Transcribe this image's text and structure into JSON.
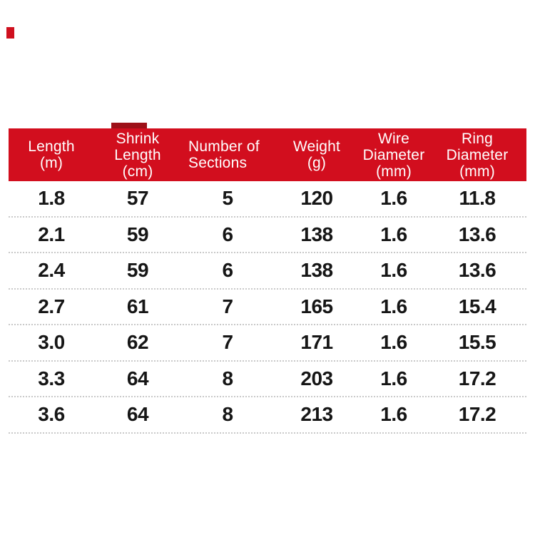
{
  "page": {
    "background_color": "#ffffff"
  },
  "decor": {
    "corner_mark_color": "#cf101e",
    "header_tab_color": "#9d1018"
  },
  "table": {
    "header_bg_color": "#d20e1e",
    "header_text_color": "#ffffff",
    "row_text_color": "#161616",
    "divider_color": "#c9c9c9",
    "columns": [
      {
        "id": "length",
        "label_lines": [
          "Length",
          "(m)"
        ],
        "align": "center"
      },
      {
        "id": "shrink-length",
        "label_lines": [
          "Shrink",
          "Length",
          "(cm)"
        ],
        "align": "center"
      },
      {
        "id": "number-of-sections",
        "label_lines": [
          "Number of",
          "Sections"
        ],
        "align": "left"
      },
      {
        "id": "weight",
        "label_lines": [
          "Weight",
          "(g)"
        ],
        "align": "center"
      },
      {
        "id": "wire-diameter",
        "label_lines": [
          "Wire",
          "Diameter",
          "(mm)"
        ],
        "align": "center"
      },
      {
        "id": "ring-diameter",
        "label_lines": [
          "Ring",
          "Diameter",
          "(mm)"
        ],
        "align": "center"
      }
    ],
    "rows": [
      [
        "1.8",
        "57",
        "5",
        "120",
        "1.6",
        "11.8"
      ],
      [
        "2.1",
        "59",
        "6",
        "138",
        "1.6",
        "13.6"
      ],
      [
        "2.4",
        "59",
        "6",
        "138",
        "1.6",
        "13.6"
      ],
      [
        "2.7",
        "61",
        "7",
        "165",
        "1.6",
        "15.4"
      ],
      [
        "3.0",
        "62",
        "7",
        "171",
        "1.6",
        "15.5"
      ],
      [
        "3.3",
        "64",
        "8",
        "203",
        "1.6",
        "17.2"
      ],
      [
        "3.6",
        "64",
        "8",
        "213",
        "1.6",
        "17.2"
      ]
    ]
  }
}
